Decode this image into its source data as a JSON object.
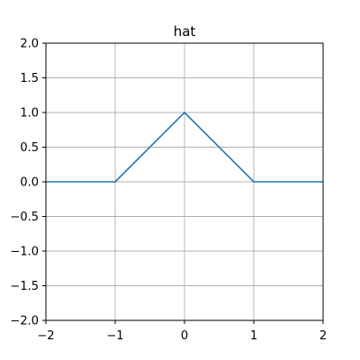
{
  "chart_data": {
    "type": "line",
    "title": "hat",
    "xlabel": "",
    "ylabel": "",
    "xlim": [
      -2,
      2
    ],
    "ylim": [
      -2,
      2
    ],
    "grid": true,
    "xticks": [
      -2,
      -1,
      0,
      1,
      2
    ],
    "xtick_labels": [
      "−2",
      "−1",
      "0",
      "1",
      "2"
    ],
    "yticks": [
      -2.0,
      -1.5,
      -1.0,
      -0.5,
      0.0,
      0.5,
      1.0,
      1.5,
      2.0
    ],
    "ytick_labels": [
      "−2.0",
      "−1.5",
      "−1.0",
      "−0.5",
      "0.0",
      "0.5",
      "1.0",
      "1.5",
      "2.0"
    ],
    "series": [
      {
        "x": [
          -2,
          -1,
          0,
          1,
          2
        ],
        "y": [
          0,
          0,
          1,
          0,
          0
        ],
        "color": "#1f77b4"
      }
    ]
  }
}
